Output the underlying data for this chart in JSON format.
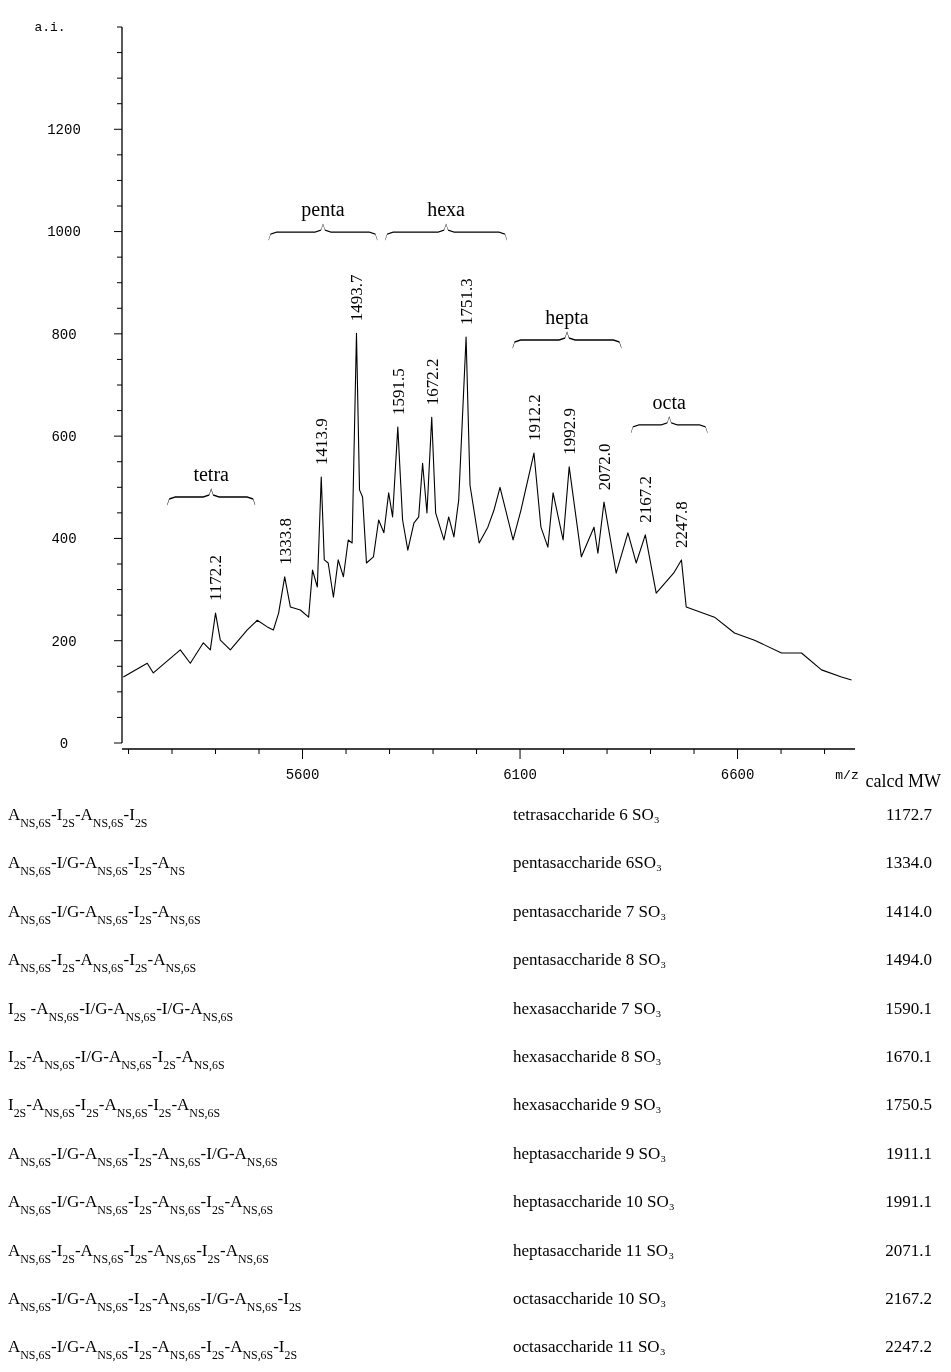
{
  "chart_data": {
    "type": "line",
    "xlabel": "m/z",
    "ylabel": "a.i.",
    "xlim": [
      5185,
      6870
    ],
    "xticks": [
      {
        "value": 5200,
        "label": null
      },
      {
        "value": 5300,
        "label": null
      },
      {
        "value": 5400,
        "label": null
      },
      {
        "value": 5500,
        "label": null
      },
      5600,
      {
        "value": 5700,
        "label": null
      },
      {
        "value": 5800,
        "label": null
      },
      {
        "value": 5900,
        "label": null
      },
      {
        "value": 6000,
        "label": null
      },
      6100,
      {
        "value": 6200,
        "label": null
      },
      {
        "value": 6300,
        "label": null
      },
      {
        "value": 6400,
        "label": null
      },
      {
        "value": 6500,
        "label": null
      },
      6600,
      {
        "value": 6700,
        "label": null
      },
      {
        "value": 6800,
        "label": null
      }
    ],
    "ylim": [
      0,
      1400
    ],
    "yticks": [
      0,
      {
        "value": 50,
        "label": null
      },
      {
        "value": 100,
        "label": null
      },
      {
        "value": 150,
        "label": null
      },
      200,
      {
        "value": 250,
        "label": null
      },
      {
        "value": 300,
        "label": null
      },
      {
        "value": 350,
        "label": null
      },
      400,
      {
        "value": 450,
        "label": null
      },
      {
        "value": 500,
        "label": null
      },
      {
        "value": 550,
        "label": null
      },
      600,
      {
        "value": 650,
        "label": null
      },
      {
        "value": 700,
        "label": null
      },
      {
        "value": 750,
        "label": null
      },
      800,
      {
        "value": 850,
        "label": null
      },
      {
        "value": 900,
        "label": null
      },
      {
        "value": 950,
        "label": null
      },
      1000,
      {
        "value": 1050,
        "label": null
      },
      {
        "value": 1100,
        "label": null
      },
      {
        "value": 1150,
        "label": null
      },
      1200,
      {
        "value": 1250,
        "label": null
      },
      {
        "value": 1300,
        "label": null
      },
      {
        "value": 1350,
        "label": null
      },
      {
        "value": 1400,
        "label": null
      }
    ],
    "grid": false,
    "marker": "none",
    "line_style": "solid",
    "series": [
      {
        "color": "#000000",
        "x": [
          5188,
          5243,
          5257,
          5319,
          5342,
          5372,
          5388,
          5400,
          5411,
          5434,
          5473,
          5496,
          5519,
          5533,
          5545,
          5559,
          5572,
          5595,
          5614,
          5623,
          5634,
          5643,
          5650,
          5659,
          5671,
          5682,
          5694,
          5705,
          5714,
          5724,
          5731,
          5738,
          5747,
          5763,
          5775,
          5787,
          5798,
          5807,
          5819,
          5830,
          5842,
          5856,
          5867,
          5876,
          5886,
          5897,
          5906,
          5925,
          5936,
          5948,
          5959,
          5966,
          5976,
          5985,
          6006,
          6026,
          6040,
          6054,
          6084,
          6102,
          6132,
          6148,
          6164,
          6176,
          6199,
          6213,
          6241,
          6270,
          6279,
          6293,
          6321,
          6348,
          6367,
          6388,
          6413,
          6453,
          6471,
          6482,
          6547,
          6593,
          6639,
          6701,
          6747,
          6793,
          6839,
          6862
        ],
        "values": [
          129,
          156,
          137,
          182,
          156,
          196,
          182,
          254,
          201,
          182,
          221,
          240,
          227,
          221,
          254,
          325,
          266,
          260,
          246,
          338,
          305,
          520,
          358,
          352,
          285,
          358,
          325,
          397,
          391,
          801,
          495,
          481,
          352,
          364,
          436,
          411,
          489,
          442,
          618,
          436,
          377,
          430,
          442,
          547,
          450,
          637,
          450,
          397,
          442,
          403,
          475,
          606,
          794,
          504,
          391,
          422,
          455,
          500,
          397,
          455,
          567,
          422,
          383,
          489,
          397,
          540,
          364,
          422,
          371,
          471,
          332,
          411,
          352,
          407,
          293,
          332,
          358,
          266,
          246,
          215,
          201,
          176,
          176,
          143,
          129,
          123
        ]
      }
    ],
    "annotations": [
      {
        "text": "1172.2",
        "x": 5400,
        "y": 254
      },
      {
        "text": "1333.8",
        "x": 5559,
        "y": 325
      },
      {
        "text": "1413.9",
        "x": 5643,
        "y": 520
      },
      {
        "text": "1493.7",
        "x": 5724,
        "y": 801
      },
      {
        "text": "1591.5",
        "x": 5819,
        "y": 618
      },
      {
        "text": "1672.2",
        "x": 5897,
        "y": 637
      },
      {
        "text": "1751.3",
        "x": 5976,
        "y": 794
      },
      {
        "text": "1912.2",
        "x": 6132,
        "y": 567
      },
      {
        "text": "1992.9",
        "x": 6213,
        "y": 540
      },
      {
        "text": "2072.0",
        "x": 6293,
        "y": 471
      },
      {
        "text": "2167.2",
        "x": 6388,
        "y": 407
      },
      {
        "text": "2247.8",
        "x": 6471,
        "y": 358
      },
      "tetra",
      "penta",
      "hexa",
      "hepta",
      "octa",
      "calcd MW",
      "A$_{NS,6S}$-I$_{2S}$-A$_{NS,6S}$-I$_{2S}$",
      "tetrasaccharide 6 SO₃",
      "1172.7",
      "A$_{NS,6S}$-I/G-A$_{NS,6S}$-I$_{2S}$-A$_{NS}$",
      "pentasaccharide 6SO₃",
      "1334.0",
      "A$_{NS,6S}$-I/G-A$_{NS,6S}$-I$_{2S}$-A$_{NS,6S}$",
      "pentasaccharide 7 SO₃",
      "1414.0",
      "A$_{NS,6S}$-I$_{2S}$-A$_{NS,6S}$-I$_{2S}$-A$_{NS,6S}$",
      "pentasaccharide 8 SO₃",
      "1494.0",
      "I$_{2S}$ -A$_{NS,6S}$-I/G-A$_{NS,6S}$-I/G-A$_{NS,6S}$",
      "hexasaccharide 7 SO₃",
      "1590.1",
      "I$_{2S}$-A$_{NS,6S}$-I/G-A$_{NS,6S}$-I$_{2S}$-A$_{NS,6S}$",
      "hexasaccharide 8 SO₃",
      "1670.1",
      "I$_{2S}$-A$_{NS,6S}$-I$_{2S}$-A$_{NS,6S}$-I$_{2S}$-A$_{NS,6S}$",
      "hexasaccharide 9 SO₃",
      "1750.5",
      "A$_{NS,6S}$-I/G-A$_{NS,6S}$-I$_{2S}$-A$_{NS,6S}$-I/G-A$_{NS,6S}$",
      "heptasaccharide 9 SO₃",
      "1911.1",
      "A$_{NS,6S}$-I/G-A$_{NS,6S}$-I$_{2S}$-A$_{NS,6S}$-I$_{2S}$-A$_{NS,6S}$",
      "heptasaccharide 10 SO₃",
      "1991.1",
      "A$_{NS,6S}$-I$_{2S}$-A$_{NS,6S}$-I$_{2S}$-A$_{NS,6S}$-I$_{2S}$-A$_{NS,6S}$",
      "heptasaccharide 11 SO₃",
      "2071.1",
      "A$_{NS,6S}$-I/G-A$_{NS,6S}$-I$_{2S}$-A$_{NS,6S}$-I/G-A$_{NS,6S}$-I$_{2S}$",
      "octasaccharide 10 SO₃",
      "2167.2",
      "A$_{NS,6S}$-I/G-A$_{NS,6S}$-I$_{2S}$-A$_{NS,6S}$-I$_{2S}$-A$_{NS,6S}$-I$_{2S}$",
      "octasaccharide 11 SO₃",
      "2247.2"
    ]
  }
}
